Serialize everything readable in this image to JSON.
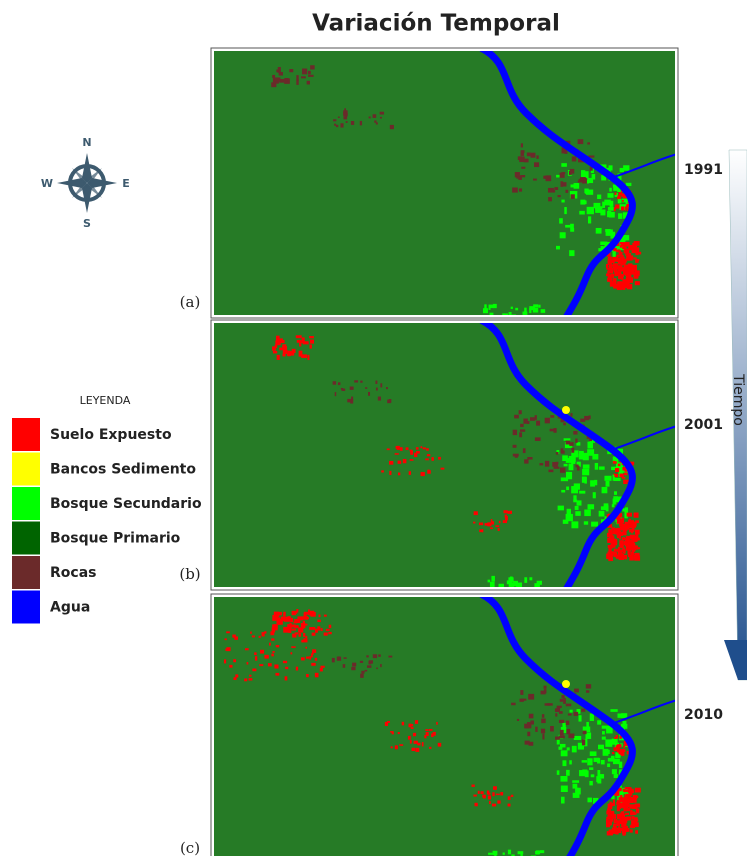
{
  "title": "Variación Temporal",
  "compass": {
    "north": "N",
    "south": "S",
    "east": "E",
    "west": "W"
  },
  "legend": {
    "title": "LEYENDA",
    "items": [
      {
        "label": "Suelo Expuesto",
        "color": "#ff0000"
      },
      {
        "label": "Bancos Sedimento",
        "color": "#ffff00"
      },
      {
        "label": "Bosque Secundario",
        "color": "#00ff00"
      },
      {
        "label": "Bosque Primario",
        "color": "#006400"
      },
      {
        "label": "Rocas",
        "color": "#6b2a2a"
      },
      {
        "label": "Agua",
        "color": "#0000ff"
      }
    ]
  },
  "panels": [
    {
      "label": "(a)",
      "year": "1991"
    },
    {
      "label": "(b)",
      "year": "2001"
    },
    {
      "label": "(c)",
      "year": "2010"
    }
  ],
  "axis_label": "Tiempo"
}
